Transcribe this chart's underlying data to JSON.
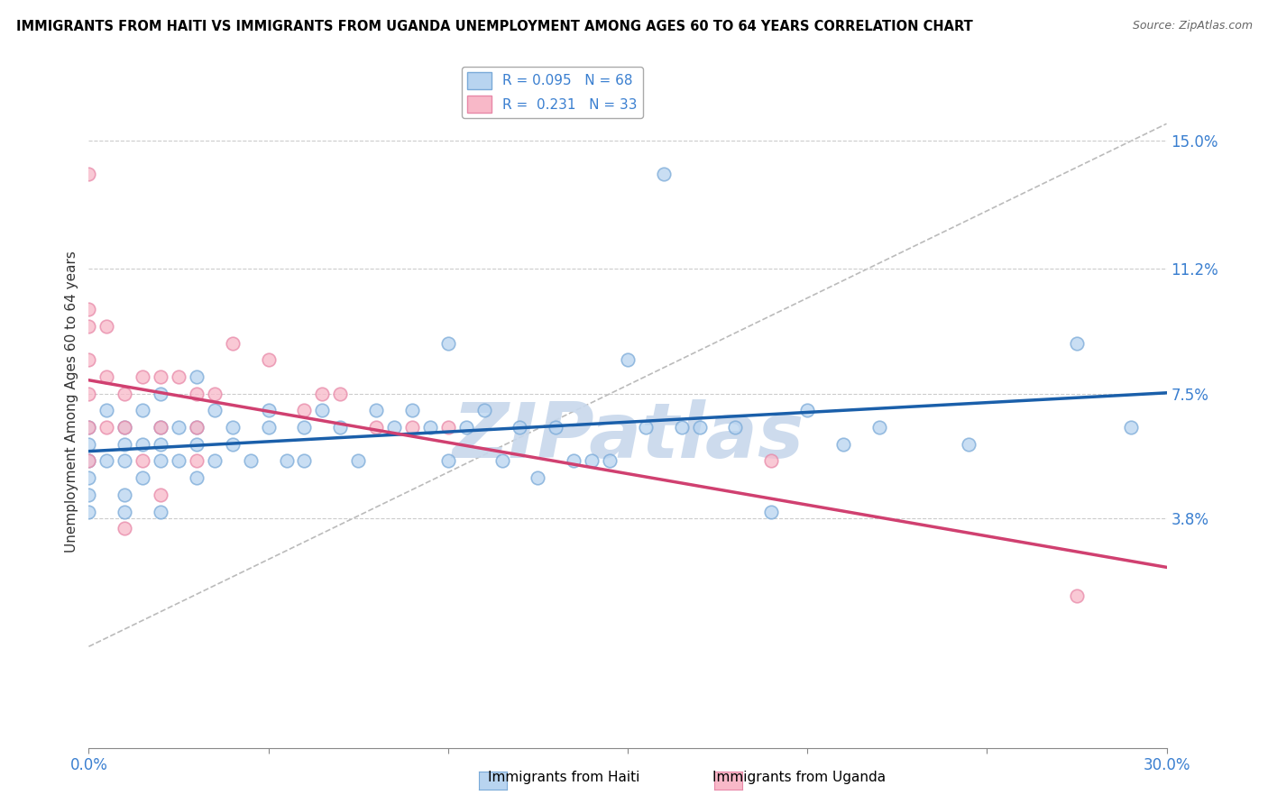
{
  "title": "IMMIGRANTS FROM HAITI VS IMMIGRANTS FROM UGANDA UNEMPLOYMENT AMONG AGES 60 TO 64 YEARS CORRELATION CHART",
  "source": "Source: ZipAtlas.com",
  "ylabel": "Unemployment Among Ages 60 to 64 years",
  "xmin": 0.0,
  "xmax": 0.3,
  "ymin": -0.03,
  "ymax": 0.175,
  "yticks": [
    0.038,
    0.075,
    0.112,
    0.15
  ],
  "ytick_labels": [
    "3.8%",
    "7.5%",
    "11.2%",
    "15.0%"
  ],
  "xticks": [
    0.0,
    0.05,
    0.1,
    0.15,
    0.2,
    0.25,
    0.3
  ],
  "xtick_labels": [
    "0.0%",
    "",
    "",
    "",
    "",
    "",
    "30.0%"
  ],
  "legend_r_haiti": "0.095",
  "legend_n_haiti": "68",
  "legend_r_uganda": "0.231",
  "legend_n_uganda": "33",
  "color_haiti_fill": "#b8d4f0",
  "color_haiti_edge": "#7aaad8",
  "color_uganda_fill": "#f8b8c8",
  "color_uganda_edge": "#e888a8",
  "color_line_haiti": "#1a5faa",
  "color_line_uganda": "#d04070",
  "color_watermark": "#c8d8ec",
  "haiti_x": [
    0.0,
    0.0,
    0.0,
    0.0,
    0.0,
    0.0,
    0.005,
    0.005,
    0.01,
    0.01,
    0.01,
    0.01,
    0.01,
    0.015,
    0.015,
    0.015,
    0.02,
    0.02,
    0.02,
    0.02,
    0.02,
    0.025,
    0.025,
    0.03,
    0.03,
    0.03,
    0.03,
    0.035,
    0.035,
    0.04,
    0.04,
    0.045,
    0.05,
    0.05,
    0.055,
    0.06,
    0.06,
    0.065,
    0.07,
    0.075,
    0.08,
    0.085,
    0.09,
    0.095,
    0.1,
    0.1,
    0.105,
    0.11,
    0.115,
    0.12,
    0.125,
    0.13,
    0.135,
    0.14,
    0.145,
    0.15,
    0.155,
    0.16,
    0.165,
    0.17,
    0.18,
    0.19,
    0.2,
    0.21,
    0.22,
    0.245,
    0.275,
    0.29
  ],
  "haiti_y": [
    0.06,
    0.065,
    0.055,
    0.05,
    0.045,
    0.04,
    0.07,
    0.055,
    0.065,
    0.06,
    0.055,
    0.045,
    0.04,
    0.07,
    0.06,
    0.05,
    0.065,
    0.075,
    0.06,
    0.055,
    0.04,
    0.065,
    0.055,
    0.08,
    0.065,
    0.06,
    0.05,
    0.07,
    0.055,
    0.065,
    0.06,
    0.055,
    0.07,
    0.065,
    0.055,
    0.065,
    0.055,
    0.07,
    0.065,
    0.055,
    0.07,
    0.065,
    0.07,
    0.065,
    0.09,
    0.055,
    0.065,
    0.07,
    0.055,
    0.065,
    0.05,
    0.065,
    0.055,
    0.055,
    0.055,
    0.085,
    0.065,
    0.14,
    0.065,
    0.065,
    0.065,
    0.04,
    0.07,
    0.06,
    0.065,
    0.06,
    0.09,
    0.065
  ],
  "uganda_x": [
    0.0,
    0.0,
    0.0,
    0.0,
    0.0,
    0.0,
    0.0,
    0.005,
    0.005,
    0.005,
    0.01,
    0.01,
    0.01,
    0.015,
    0.015,
    0.02,
    0.02,
    0.02,
    0.025,
    0.03,
    0.03,
    0.03,
    0.035,
    0.04,
    0.05,
    0.06,
    0.065,
    0.07,
    0.08,
    0.09,
    0.1,
    0.19,
    0.275
  ],
  "uganda_y": [
    0.14,
    0.1,
    0.095,
    0.085,
    0.075,
    0.065,
    0.055,
    0.095,
    0.08,
    0.065,
    0.075,
    0.065,
    0.035,
    0.08,
    0.055,
    0.08,
    0.065,
    0.045,
    0.08,
    0.075,
    0.065,
    0.055,
    0.075,
    0.09,
    0.085,
    0.07,
    0.075,
    0.075,
    0.065,
    0.065,
    0.065,
    0.055,
    0.015
  ],
  "diag_line": [
    [
      0.0,
      0.3
    ],
    [
      0.0,
      0.155
    ]
  ]
}
